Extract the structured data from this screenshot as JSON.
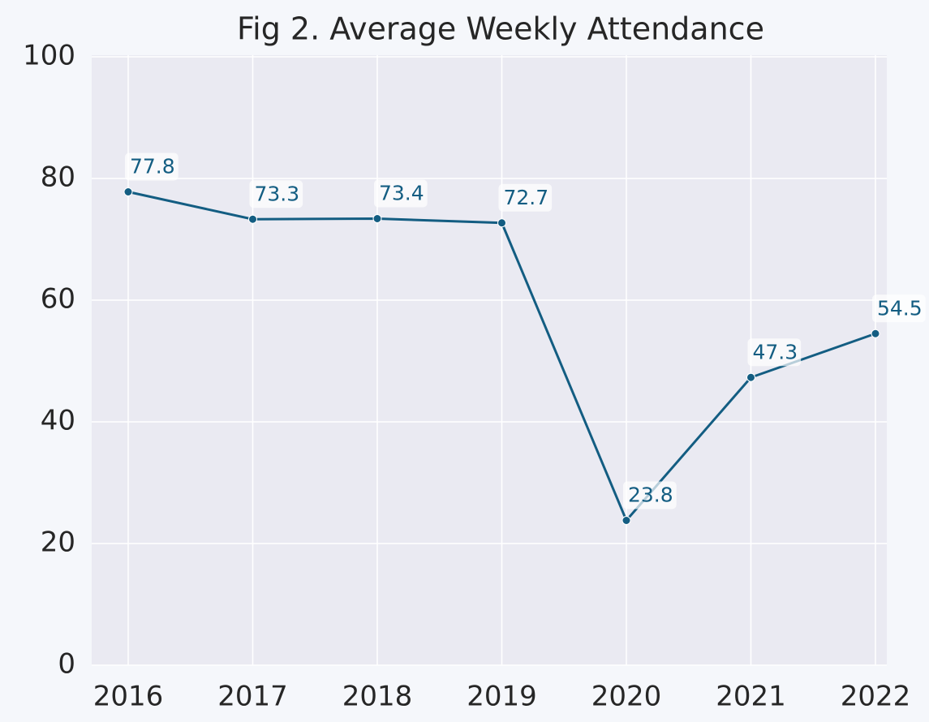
{
  "chart_data": {
    "type": "line",
    "title": "Fig 2. Average Weekly Attendance",
    "categories": [
      "2016",
      "2017",
      "2018",
      "2019",
      "2020",
      "2021",
      "2022"
    ],
    "series": [
      {
        "name": "Average Weekly Attendance",
        "color": "#135d82",
        "values": [
          77.8,
          73.3,
          73.4,
          72.7,
          23.8,
          47.3,
          54.5
        ]
      }
    ],
    "ylim": [
      0,
      100
    ],
    "yticks": [
      0,
      20,
      40,
      60,
      80,
      100
    ],
    "grid": true
  }
}
